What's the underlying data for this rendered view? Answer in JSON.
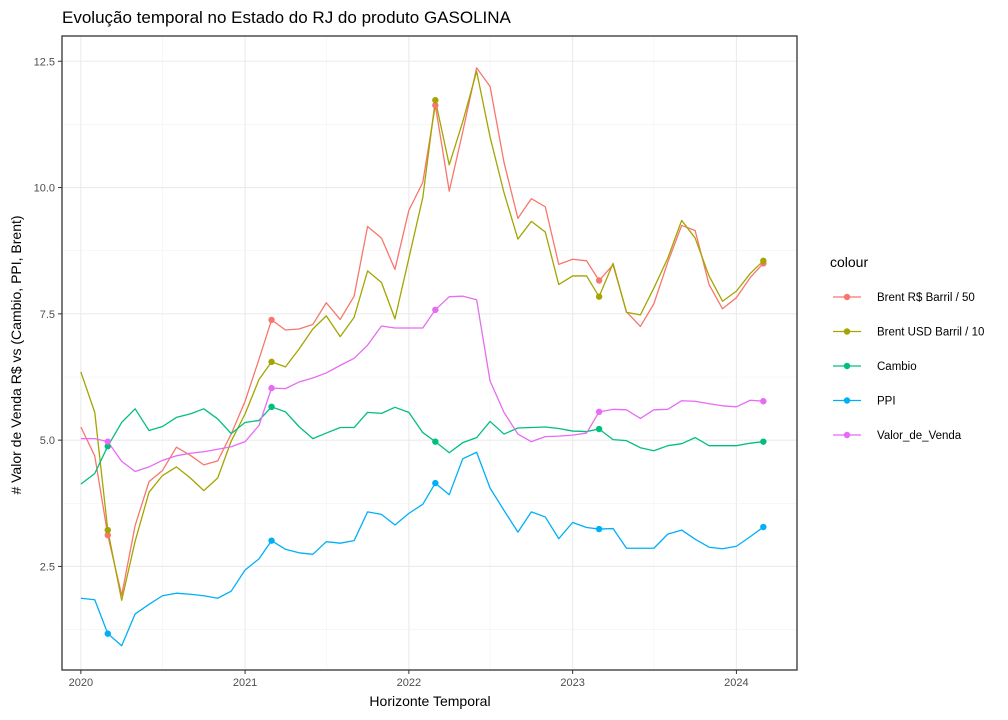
{
  "chart_data": {
    "type": "line",
    "title": "Evolução temporal no Estado do RJ do produto GASOLINA",
    "xlabel": "Horizonte Temporal",
    "ylabel": "# Valor de Venda R$ vs (Cambio, PPI, Brent)",
    "legend_title": "colour",
    "legend_position": "right",
    "grid": true,
    "x_ticks": [
      "2020",
      "2021",
      "2022",
      "2023",
      "2024"
    ],
    "y_ticks": [
      "2.5",
      "5.0",
      "7.5",
      "10.0",
      "12.5"
    ],
    "xlim": [
      "2019-11-20",
      "2024-05-15"
    ],
    "ylim": [
      0.45,
      13.0
    ],
    "x": [
      "2020-01",
      "2020-02",
      "2020-03",
      "2020-04",
      "2020-05",
      "2020-06",
      "2020-07",
      "2020-08",
      "2020-09",
      "2020-10",
      "2020-11",
      "2020-12",
      "2021-01",
      "2021-02",
      "2021-03",
      "2021-04",
      "2021-05",
      "2021-06",
      "2021-07",
      "2021-08",
      "2021-09",
      "2021-10",
      "2021-11",
      "2021-12",
      "2022-01",
      "2022-02",
      "2022-03",
      "2022-04",
      "2022-05",
      "2022-06",
      "2022-07",
      "2022-08",
      "2022-09",
      "2022-10",
      "2022-11",
      "2022-12",
      "2023-01",
      "2023-02",
      "2023-03",
      "2023-04",
      "2023-05",
      "2023-06",
      "2023-07",
      "2023-08",
      "2023-09",
      "2023-10",
      "2023-11",
      "2023-12",
      "2024-01",
      "2024-02",
      "2024-03"
    ],
    "marker_x": [
      "2020-03",
      "2021-03",
      "2022-03",
      "2023-03",
      "2024-03"
    ],
    "series": [
      {
        "name": "Brent R$ Barril / 50",
        "color": "#F8766D",
        "values": [
          5.26,
          4.69,
          3.12,
          1.93,
          3.31,
          4.18,
          4.4,
          4.86,
          4.7,
          4.51,
          4.59,
          5.12,
          5.77,
          6.6,
          7.38,
          7.18,
          7.2,
          7.29,
          7.72,
          7.39,
          7.85,
          9.23,
          9.0,
          8.38,
          9.55,
          10.1,
          11.63,
          9.93,
          11.1,
          12.37,
          12.0,
          10.5,
          9.39,
          9.78,
          9.62,
          8.48,
          8.58,
          8.55,
          8.16,
          8.47,
          7.54,
          7.25,
          7.7,
          8.52,
          9.25,
          9.15,
          8.08,
          7.6,
          7.82,
          8.22,
          8.5
        ]
      },
      {
        "name": "Brent USD Barril / 10",
        "color": "#A3A500",
        "values": [
          6.35,
          5.55,
          3.22,
          1.83,
          3.0,
          3.97,
          4.3,
          4.47,
          4.25,
          4.0,
          4.25,
          4.98,
          5.52,
          6.2,
          6.55,
          6.45,
          6.8,
          7.2,
          7.46,
          7.05,
          7.43,
          8.35,
          8.12,
          7.4,
          8.6,
          9.8,
          11.73,
          10.45,
          11.3,
          12.3,
          11.0,
          9.9,
          8.98,
          9.33,
          9.12,
          8.08,
          8.25,
          8.25,
          7.84,
          8.5,
          7.53,
          7.48,
          8.01,
          8.6,
          9.35,
          9.0,
          8.25,
          7.75,
          7.95,
          8.3,
          8.55
        ]
      },
      {
        "name": "Cambio",
        "color": "#00BF7D",
        "values": [
          4.13,
          4.34,
          4.88,
          5.35,
          5.62,
          5.19,
          5.27,
          5.45,
          5.52,
          5.62,
          5.42,
          5.13,
          5.35,
          5.39,
          5.66,
          5.56,
          5.27,
          5.03,
          5.14,
          5.25,
          5.25,
          5.55,
          5.53,
          5.65,
          5.55,
          5.15,
          4.97,
          4.75,
          4.95,
          5.05,
          5.37,
          5.12,
          5.24,
          5.25,
          5.26,
          5.23,
          5.18,
          5.17,
          5.22,
          5.01,
          4.99,
          4.85,
          4.79,
          4.89,
          4.93,
          5.05,
          4.89,
          4.89,
          4.89,
          4.94,
          4.97
        ]
      },
      {
        "name": "PPI",
        "color": "#00B0F6",
        "values": [
          1.87,
          1.84,
          1.17,
          0.93,
          1.56,
          1.75,
          1.92,
          1.97,
          1.95,
          1.92,
          1.87,
          2.01,
          2.43,
          2.65,
          3.01,
          2.84,
          2.77,
          2.74,
          2.99,
          2.96,
          3.01,
          3.58,
          3.53,
          3.32,
          3.55,
          3.73,
          4.15,
          3.92,
          4.63,
          4.76,
          4.05,
          3.61,
          3.18,
          3.58,
          3.48,
          3.05,
          3.37,
          3.27,
          3.24,
          3.25,
          2.86,
          2.86,
          2.86,
          3.14,
          3.22,
          3.04,
          2.88,
          2.85,
          2.9,
          3.09,
          3.28
        ]
      },
      {
        "name": "Valor_de_Venda",
        "color": "#E76BF3",
        "values": [
          5.03,
          5.03,
          4.97,
          4.58,
          4.38,
          4.47,
          4.6,
          4.69,
          4.74,
          4.77,
          4.82,
          4.87,
          4.97,
          5.29,
          6.03,
          6.02,
          6.15,
          6.23,
          6.33,
          6.48,
          6.62,
          6.88,
          7.26,
          7.22,
          7.22,
          7.22,
          7.58,
          7.84,
          7.85,
          7.78,
          6.17,
          5.55,
          5.12,
          4.97,
          5.07,
          5.08,
          5.1,
          5.14,
          5.56,
          5.61,
          5.6,
          5.43,
          5.6,
          5.61,
          5.78,
          5.77,
          5.72,
          5.68,
          5.66,
          5.79,
          5.77
        ]
      }
    ]
  }
}
